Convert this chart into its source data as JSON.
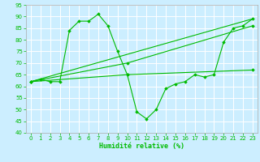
{
  "xlabel": "Humidité relative (%)",
  "background_color": "#cceeff",
  "grid_color": "#ffffff",
  "line_color": "#00bb00",
  "marker_color": "#00bb00",
  "xlim": [
    -0.5,
    23.5
  ],
  "ylim": [
    40,
    95
  ],
  "xticks": [
    0,
    1,
    2,
    3,
    4,
    5,
    6,
    7,
    8,
    9,
    10,
    11,
    12,
    13,
    14,
    15,
    16,
    17,
    18,
    19,
    20,
    21,
    22,
    23
  ],
  "yticks": [
    40,
    45,
    50,
    55,
    60,
    65,
    70,
    75,
    80,
    85,
    90,
    95
  ],
  "lines": [
    {
      "x": [
        0,
        1,
        2,
        3,
        4,
        5,
        6,
        7,
        8,
        9,
        10,
        11,
        12,
        13,
        14,
        15,
        16,
        17,
        18,
        19,
        20,
        21,
        22,
        23
      ],
      "y": [
        62,
        63,
        62,
        62,
        84,
        88,
        88,
        91,
        86,
        75,
        65,
        49,
        46,
        50,
        59,
        61,
        62,
        65,
        64,
        65,
        79,
        85,
        86,
        89
      ],
      "has_markers": true
    },
    {
      "x": [
        0,
        23
      ],
      "y": [
        62,
        89
      ],
      "has_markers": false
    },
    {
      "x": [
        0,
        10,
        23
      ],
      "y": [
        62,
        65,
        67
      ],
      "has_markers": true
    },
    {
      "x": [
        0,
        10,
        23
      ],
      "y": [
        62,
        70,
        86
      ],
      "has_markers": true
    }
  ]
}
